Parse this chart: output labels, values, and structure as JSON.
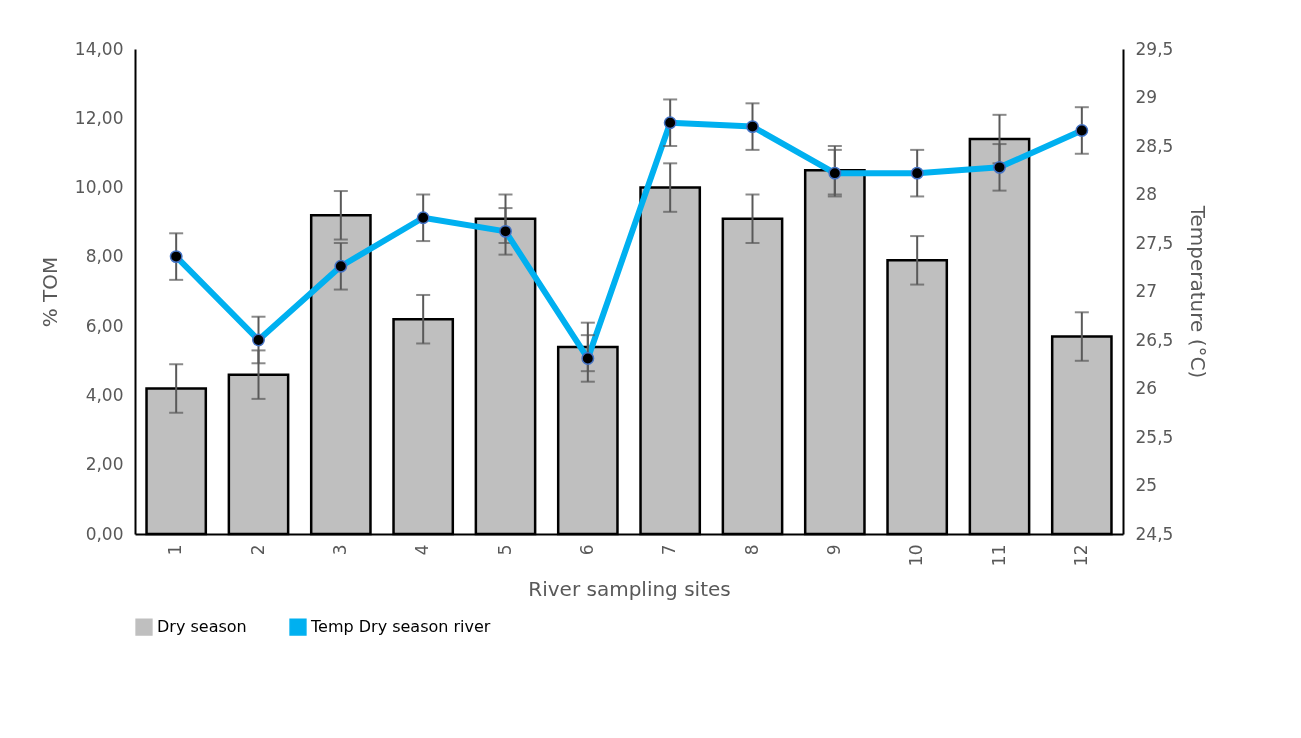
{
  "chart_data": {
    "type": "bar",
    "xlabel": "River sampling sites",
    "ylabel": "% TOM",
    "y2label": "Temperature (°C)",
    "categories": [
      "1",
      "2",
      "3",
      "4",
      "5",
      "6",
      "7",
      "8",
      "9",
      "10",
      "11",
      "12"
    ],
    "series": [
      {
        "name": "Dry season",
        "color": "#bfbfbf",
        "values": [
          4.2,
          4.6,
          9.2,
          6.2,
          9.1,
          5.4,
          10.0,
          9.1,
          10.5,
          7.9,
          11.4,
          5.7
        ],
        "errors": [
          0.7,
          0.7,
          0.7,
          0.7,
          0.7,
          0.7,
          0.7,
          0.7,
          0.7,
          0.7,
          0.7,
          0.7
        ]
      },
      {
        "name": "Temp Dry season river",
        "type": "line",
        "axis": "y2",
        "color": "#00b0f0",
        "values": [
          27.36,
          26.5,
          27.26,
          27.76,
          27.62,
          26.31,
          28.74,
          28.7,
          28.22,
          28.22,
          28.28,
          28.66
        ],
        "errors": [
          0.24,
          0.24,
          0.24,
          0.24,
          0.24,
          0.24,
          0.24,
          0.24,
          0.24,
          0.24,
          0.24,
          0.24
        ]
      }
    ],
    "ylim": [
      0,
      14
    ],
    "yticks": [
      {
        "value": 0,
        "label": "0,00"
      },
      {
        "value": 2,
        "label": "2,00"
      },
      {
        "value": 4,
        "label": "4,00"
      },
      {
        "value": 6,
        "label": "6,00"
      },
      {
        "value": 8,
        "label": "8,00"
      },
      {
        "value": 10,
        "label": "10,00"
      },
      {
        "value": 12,
        "label": "12,00"
      },
      {
        "value": 14,
        "label": "14,00"
      }
    ],
    "y2lim": [
      24.5,
      29.5
    ],
    "y2ticks": [
      {
        "value": 24.5,
        "label": "24,5"
      },
      25,
      {
        "value": 25.5,
        "label": "25,5"
      },
      26,
      {
        "value": 26.5,
        "label": "26,5"
      },
      27,
      {
        "value": 27.5,
        "label": "27,5"
      },
      28,
      {
        "value": 28.5,
        "label": "28,5"
      },
      29,
      {
        "value": 29.5,
        "label": "29,5"
      }
    ],
    "grid": false,
    "legend": "bottom",
    "marker": "circle",
    "line_style": "solid"
  }
}
